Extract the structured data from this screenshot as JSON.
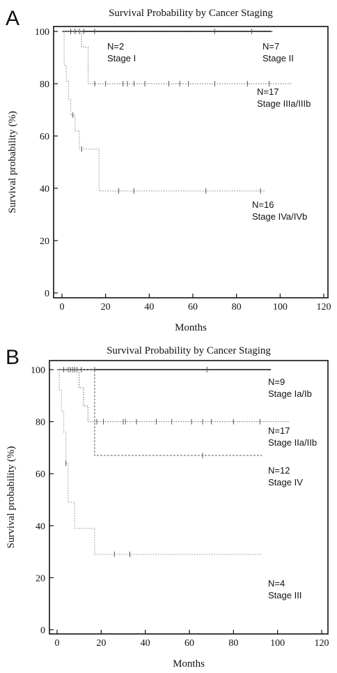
{
  "chart_data": [
    {
      "panel": "A",
      "type": "line",
      "title": "Survival Probability by Cancer Staging",
      "xlabel": "Months",
      "ylabel": "Survival probability (%)",
      "xlim": [
        0,
        120
      ],
      "ylim": [
        0,
        100
      ],
      "xticks": [
        "0",
        "20",
        "40",
        "60",
        "80",
        "100",
        "120"
      ],
      "yticks": [
        "0",
        "20",
        "40",
        "60",
        "80",
        "100"
      ],
      "grid": false,
      "series": [
        {
          "name": "Stage I",
          "n_label": "N=2",
          "color": "#777777",
          "dash": "1.5,2",
          "x": [
            0,
            97
          ],
          "y": [
            100,
            100
          ],
          "censor_x": [
            4,
            6,
            8
          ]
        },
        {
          "name": "Stage II",
          "n_label": "N=7",
          "color": "#111111",
          "dash": "",
          "x": [
            0,
            96
          ],
          "y": [
            100,
            100
          ],
          "censor_x": [
            10,
            15,
            70,
            87
          ]
        },
        {
          "name": "Stage IIIa/IIIb",
          "n_label": "N=17",
          "color": "#9a9a9a",
          "dash": "1.5,2",
          "x": [
            0,
            9,
            12,
            105
          ],
          "y": [
            100,
            94,
            80,
            80
          ],
          "censor_x": [
            15,
            20,
            28,
            30,
            33,
            38,
            49,
            54,
            58,
            70,
            85,
            95
          ]
        },
        {
          "name": "Stage IVa/IVb",
          "n_label": "N=16",
          "color": "#aaaaaa",
          "dash": "1.5,2",
          "x": [
            0,
            1,
            2,
            3,
            4,
            6,
            8,
            17,
            93
          ],
          "y": [
            100,
            87,
            81,
            74,
            68,
            62,
            55,
            39,
            39
          ],
          "censor_x": [
            5,
            9,
            26,
            33,
            66,
            91
          ]
        }
      ]
    },
    {
      "panel": "B",
      "type": "line",
      "title": "Survival Probability by Cancer Staging",
      "xlabel": "Months",
      "ylabel": "Survival probability (%)",
      "xlim": [
        0,
        120
      ],
      "ylim": [
        0,
        100
      ],
      "xticks": [
        "0",
        "20",
        "40",
        "60",
        "80",
        "100",
        "120"
      ],
      "yticks": [
        "0",
        "20",
        "40",
        "60",
        "80",
        "100"
      ],
      "grid": false,
      "series": [
        {
          "name": "Stage Ia/Ib",
          "n_label": "N=9",
          "color": "#111111",
          "dash": "",
          "x": [
            0,
            97
          ],
          "y": [
            100,
            100
          ],
          "censor_x": [
            3,
            5,
            6,
            7,
            8,
            9,
            11,
            17,
            68
          ]
        },
        {
          "name": "Stage IIa/IIb",
          "n_label": "N=17",
          "color": "#888888",
          "dash": "1.5,2",
          "x": [
            0,
            10,
            12,
            14,
            105
          ],
          "y": [
            100,
            93,
            86,
            80,
            80
          ],
          "censor_x": [
            18,
            21,
            30,
            31,
            36,
            45,
            52,
            61,
            66,
            70,
            80,
            92
          ]
        },
        {
          "name": "Stage IV",
          "n_label": "N=12",
          "color": "#888888",
          "dash": "3,2",
          "x": [
            0,
            16,
            17,
            93
          ],
          "y": [
            100,
            100,
            67,
            67
          ],
          "censor_x": [
            66
          ]
        },
        {
          "name": "Stage III",
          "n_label": "N=4",
          "color": "#aaaaaa",
          "dash": "1.5,2",
          "x": [
            0,
            1,
            2,
            3,
            4,
            5,
            8,
            17,
            93
          ],
          "y": [
            100,
            92,
            84,
            76,
            64,
            49,
            39,
            29,
            29
          ],
          "censor_x": [
            4,
            26,
            33
          ]
        }
      ]
    }
  ]
}
